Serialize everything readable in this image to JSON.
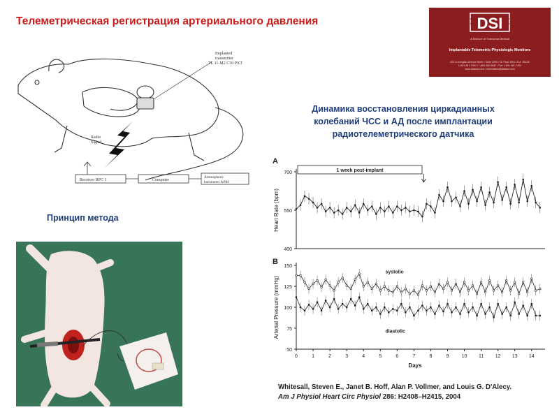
{
  "title": "Телеметрическая регистрация артериального давления",
  "logo": {
    "mark": "DSI",
    "subtitle": "A Division of Transoma Medical",
    "tagline": "Implantable Telemetric Physiologic Monitors",
    "address_line1": "6211 Lexington Avenue North • Suite 2000 • St. Paul, MN U.S.A. 55126",
    "address_line2": "1-651-481-7400 • 1-800-262-9687 • Fax 1-651-481-7404",
    "address_line3": "www.datasci.com • information@datasci.com",
    "bg_color": "#8b1d1f"
  },
  "diagram": {
    "implant_label_1": "Implanted",
    "implant_label_2": "transmitter",
    "implant_label_3": "TL 11-M2 C50 PXT",
    "radio_label_1": "Radio",
    "radio_label_2": "Signal",
    "receiver": "Receiver RPC 1",
    "computer": "Computer",
    "barometer_1": "Atmospheric",
    "barometer_2": "barometer APR1"
  },
  "principle_label": "Принцип метода",
  "chart_subtitle_1": "Динамика восстановления циркадианных",
  "chart_subtitle_2": "колебаний ЧСС и АД после имплантации",
  "chart_subtitle_3": "радиотелеметрического датчика",
  "chart_data": [
    {
      "panel": "A",
      "type": "line",
      "ylabel": "Heart Rate (bpm)",
      "ylim": [
        400,
        700
      ],
      "yticks": [
        "700",
        "550",
        "400"
      ],
      "annotation": "1 week post-implant",
      "grid": false,
      "x": [
        0,
        0.25,
        0.5,
        0.75,
        1,
        1.25,
        1.5,
        1.75,
        2,
        2.25,
        2.5,
        2.75,
        3,
        3.25,
        3.5,
        3.75,
        4,
        4.25,
        4.5,
        4.75,
        5,
        5.25,
        5.5,
        5.75,
        6,
        6.25,
        6.5,
        6.75,
        7,
        7.25,
        7.5,
        7.75,
        8,
        8.25,
        8.5,
        8.75,
        9,
        9.25,
        9.5,
        9.75,
        10,
        10.25,
        10.5,
        10.75,
        11,
        11.25,
        11.5,
        11.75,
        12,
        12.25,
        12.5,
        12.75,
        13,
        13.25,
        13.5,
        13.75,
        14,
        14.25,
        14.5
      ],
      "values": [
        555,
        570,
        605,
        595,
        580,
        560,
        575,
        545,
        560,
        540,
        550,
        535,
        560,
        545,
        570,
        540,
        575,
        550,
        565,
        535,
        560,
        545,
        565,
        540,
        565,
        550,
        560,
        545,
        550,
        545,
        525,
        575,
        565,
        540,
        610,
        585,
        640,
        585,
        600,
        565,
        625,
        575,
        630,
        585,
        640,
        570,
        620,
        580,
        660,
        590,
        640,
        575,
        650,
        580,
        670,
        585,
        645,
        580,
        560
      ]
    },
    {
      "panel": "B",
      "type": "line",
      "ylabel": "Arterial Pressure (mmHg)",
      "xlabel": "Days",
      "ylim": [
        50,
        150
      ],
      "yticks": [
        "150",
        "125",
        "100",
        "75",
        "50"
      ],
      "xticks": [
        "0",
        "1",
        "2",
        "3",
        "4",
        "5",
        "6",
        "7",
        "8",
        "9",
        "10",
        "11",
        "12",
        "13",
        "14"
      ],
      "grid": false,
      "series": [
        {
          "name": "systolic",
          "x": [
            0,
            0.25,
            0.5,
            0.75,
            1,
            1.25,
            1.5,
            1.75,
            2,
            2.25,
            2.5,
            2.75,
            3,
            3.25,
            3.5,
            3.75,
            4,
            4.25,
            4.5,
            4.75,
            5,
            5.25,
            5.5,
            5.75,
            6,
            6.25,
            6.5,
            6.75,
            7,
            7.25,
            7.5,
            7.75,
            8,
            8.25,
            8.5,
            8.75,
            9,
            9.25,
            9.5,
            9.75,
            10,
            10.25,
            10.5,
            10.75,
            11,
            11.25,
            11.5,
            11.75,
            12,
            12.25,
            12.5,
            12.75,
            13,
            13.25,
            13.5,
            13.75,
            14,
            14.25,
            14.5
          ],
          "values": [
            138,
            138,
            130,
            122,
            128,
            132,
            124,
            133,
            126,
            120,
            130,
            135,
            126,
            122,
            133,
            140,
            125,
            130,
            122,
            128,
            120,
            125,
            120,
            118,
            125,
            118,
            122,
            116,
            120,
            115,
            126,
            120,
            125,
            118,
            128,
            122,
            130,
            120,
            128,
            118,
            130,
            120,
            126,
            116,
            130,
            118,
            132,
            120,
            126,
            118,
            132,
            120,
            130,
            116,
            130,
            118,
            134,
            120,
            122
          ]
        },
        {
          "name": "diastolic",
          "x": [
            0,
            0.25,
            0.5,
            0.75,
            1,
            1.25,
            1.5,
            1.75,
            2,
            2.25,
            2.5,
            2.75,
            3,
            3.25,
            3.5,
            3.75,
            4,
            4.25,
            4.5,
            4.75,
            5,
            5.25,
            5.5,
            5.75,
            6,
            6.25,
            6.5,
            6.75,
            7,
            7.25,
            7.5,
            7.75,
            8,
            8.25,
            8.5,
            8.75,
            9,
            9.25,
            9.5,
            9.75,
            10,
            10.25,
            10.5,
            10.75,
            11,
            11.25,
            11.5,
            11.75,
            12,
            12.25,
            12.5,
            12.75,
            13,
            13.25,
            13.5,
            13.75,
            14,
            14.25,
            14.5
          ],
          "values": [
            112,
            100,
            96,
            103,
            98,
            106,
            96,
            108,
            100,
            110,
            98,
            104,
            100,
            110,
            102,
            112,
            98,
            104,
            96,
            100,
            92,
            100,
            94,
            98,
            96,
            104,
            94,
            100,
            90,
            96,
            102,
            96,
            100,
            92,
            102,
            95,
            104,
            94,
            100,
            92,
            104,
            94,
            100,
            90,
            104,
            92,
            100,
            88,
            104,
            92,
            100,
            90,
            106,
            92,
            102,
            90,
            104,
            90,
            90
          ]
        }
      ]
    }
  ],
  "citation": {
    "authors": "Whitesall, Steven E., Janet B. Hoff, Alan P. Vollmer, and Louis G. D'Alecy.",
    "journal": "Am J Physiol Heart Circ Physiol",
    "volume": "286: H2408–H2415, 2004"
  },
  "colors": {
    "title": "#cc1b1b",
    "subtitle": "#1f3d7a"
  }
}
